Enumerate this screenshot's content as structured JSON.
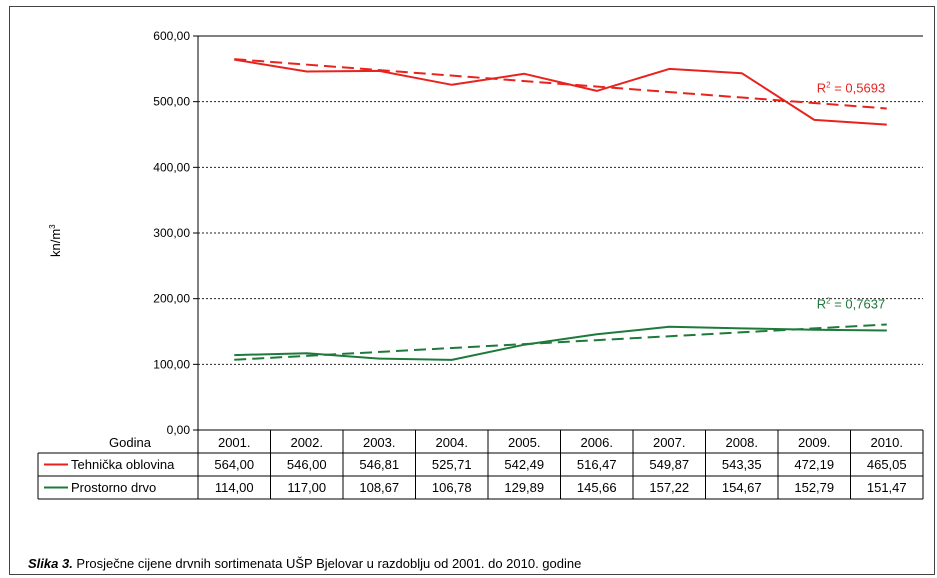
{
  "chart_data": {
    "type": "line",
    "x_label": "Godina",
    "y_label": "kn/m",
    "y_label_sup": "3",
    "ylim": [
      0,
      600
    ],
    "y_ticks": [
      0,
      100,
      200,
      300,
      400,
      500,
      600
    ],
    "y_tick_labels": [
      "0,00",
      "100,00",
      "200,00",
      "300,00",
      "400,00",
      "500,00",
      "600,00"
    ],
    "grid": "horizontal dotted",
    "categories": [
      "2001.",
      "2002.",
      "2003.",
      "2004.",
      "2005.",
      "2006.",
      "2007.",
      "2008.",
      "2009.",
      "2010."
    ],
    "series": [
      {
        "name": "Tehnička oblovina",
        "color": "#e8231e",
        "values": [
          564.0,
          546.0,
          546.81,
          525.71,
          542.49,
          516.47,
          549.87,
          543.35,
          472.19,
          465.05
        ],
        "value_labels": [
          "564,00",
          "546,00",
          "546,81",
          "525,71",
          "542,49",
          "516,47",
          "549,87",
          "543,35",
          "472,19",
          "465,05"
        ],
        "trendline": "linear",
        "r2_text": "R",
        "r2_sup": "2",
        "r2_value": " = 0,5693"
      },
      {
        "name": "Prostorno drvo",
        "color": "#1e7a3a",
        "values": [
          114.0,
          117.0,
          108.67,
          106.78,
          129.89,
          145.66,
          157.22,
          154.67,
          152.79,
          151.47
        ],
        "value_labels": [
          "114,00",
          "117,00",
          "108,67",
          "106,78",
          "129,89",
          "145,66",
          "157,22",
          "154,67",
          "152,79",
          "151,47"
        ],
        "trendline": "linear",
        "r2_text": "R",
        "r2_sup": "2",
        "r2_value": " = 0,7637"
      }
    ]
  },
  "caption": {
    "label": "Slika 3.",
    "text": " Prosječne cijene drvnih sortimenata UŠP Bjelovar u razdoblju od 2001. do 2010. godine"
  }
}
